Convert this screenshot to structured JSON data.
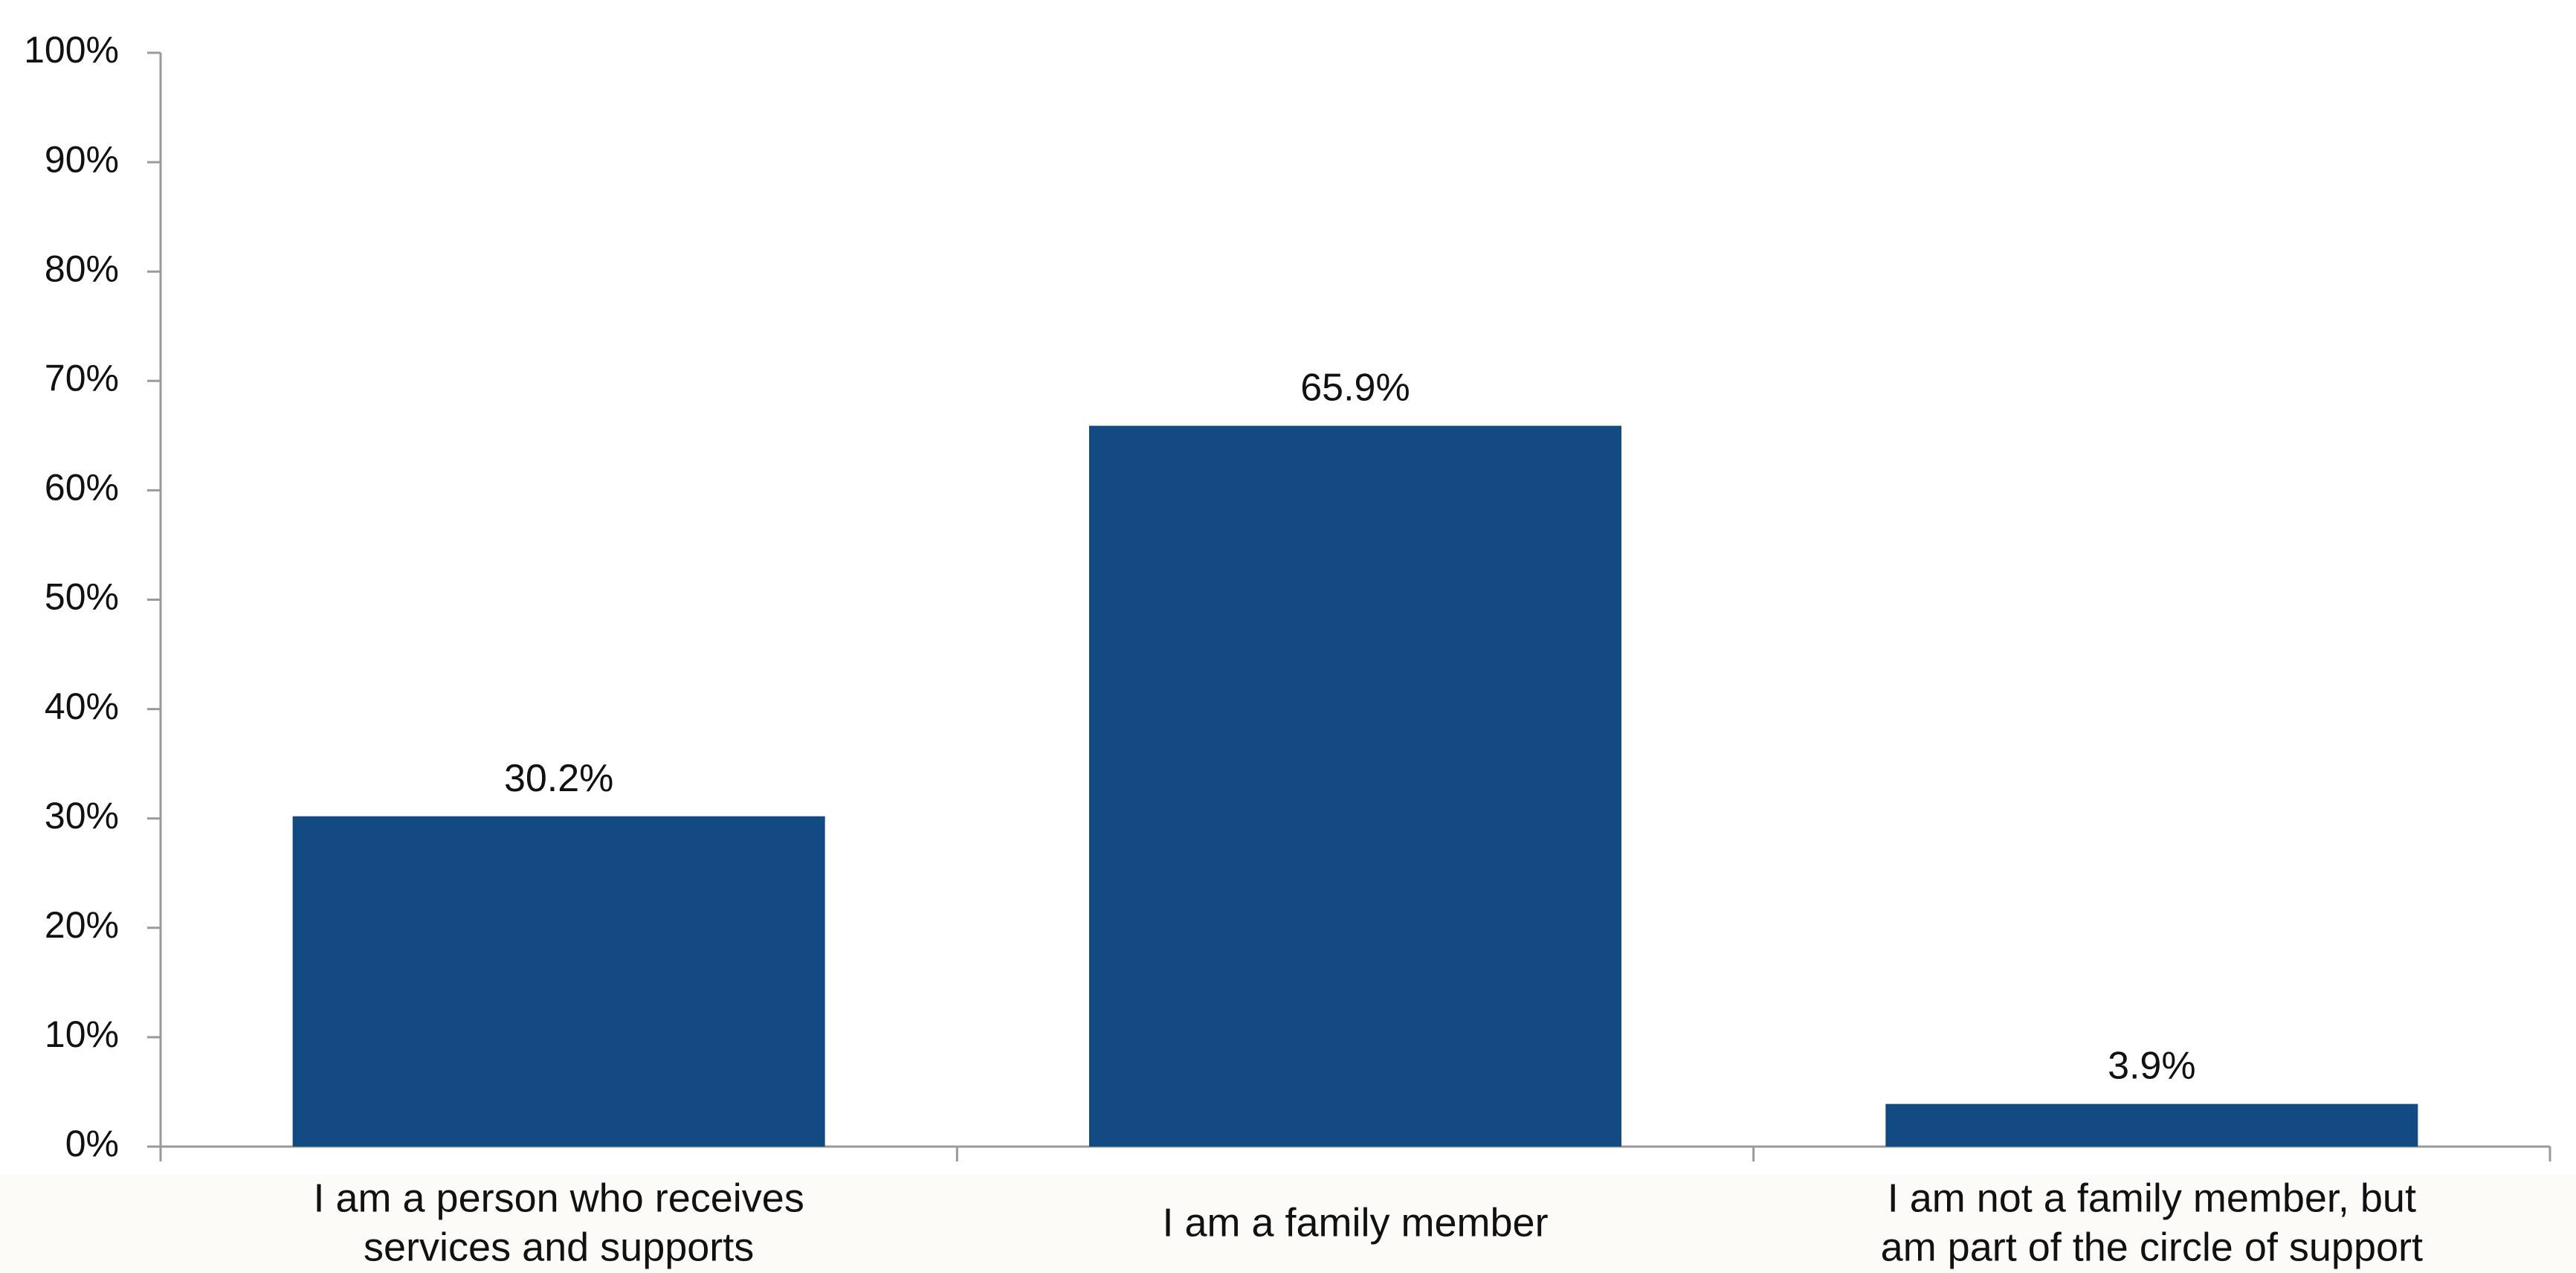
{
  "chart_data": {
    "type": "bar",
    "categories": [
      [
        "I am a person who receives",
        "services and supports"
      ],
      [
        "I am a family member"
      ],
      [
        "I am not a family member, but",
        "am part of the circle of support"
      ]
    ],
    "values": [
      30.2,
      65.9,
      3.9
    ],
    "value_labels": [
      "30.2%",
      "65.9%",
      "3.9%"
    ],
    "ylim": [
      0,
      100
    ],
    "yticks": [
      0,
      10,
      20,
      30,
      40,
      50,
      60,
      70,
      80,
      90,
      100
    ],
    "ytick_labels": [
      "0%",
      "10%",
      "20%",
      "30%",
      "40%",
      "50%",
      "60%",
      "70%",
      "80%",
      "90%",
      "100%"
    ],
    "title": "",
    "xlabel": "",
    "ylabel": "",
    "grid": false,
    "legend": "none",
    "colors": {
      "bar": "#124a82",
      "axis": "#9a9a9a",
      "background": "#fcfbf7",
      "plot_background": "#ffffff"
    }
  }
}
